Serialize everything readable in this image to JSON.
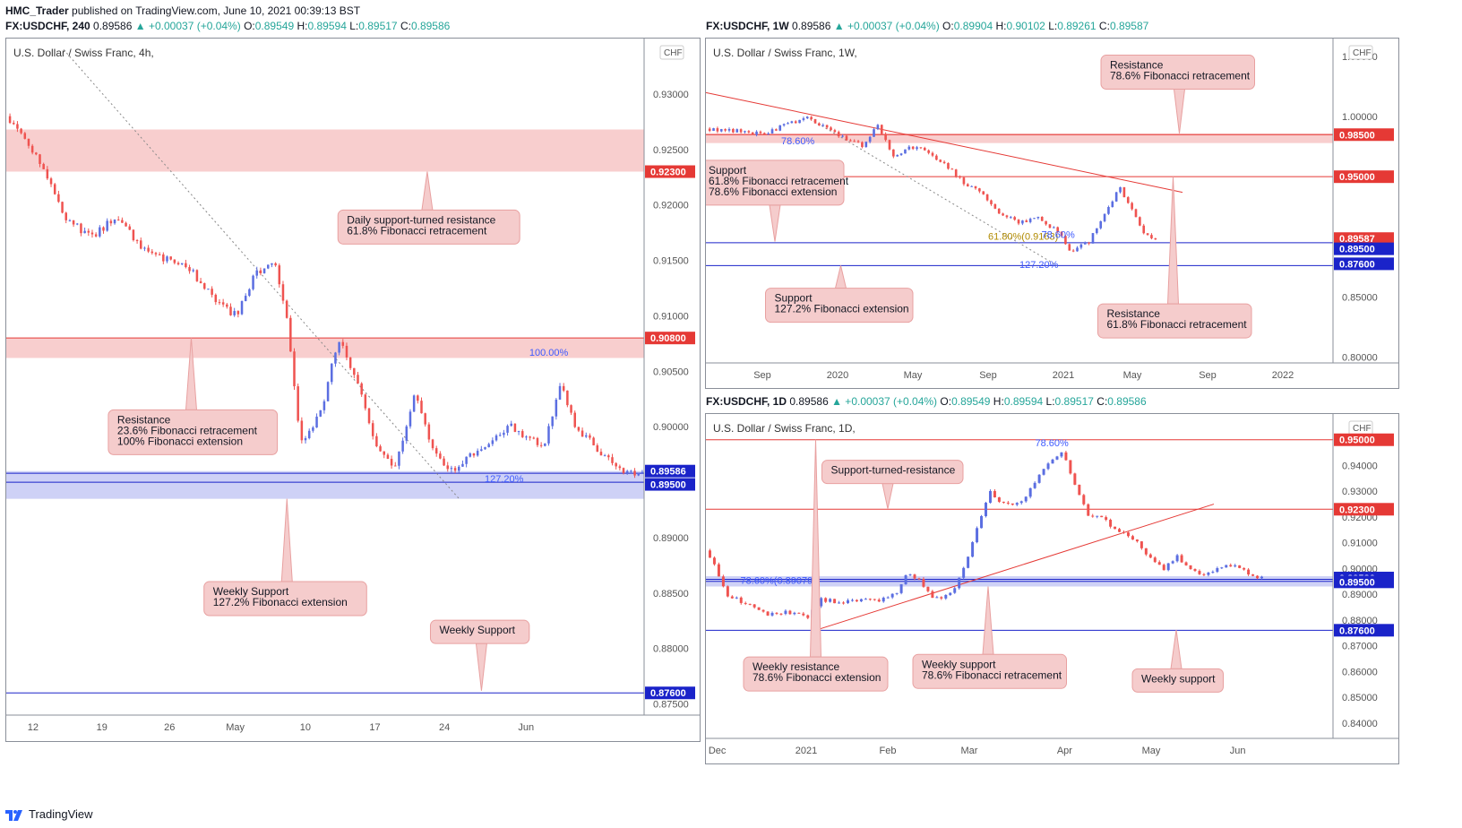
{
  "header": {
    "publisher": "HMC_Trader",
    "published_text": "published on TradingView.com, June 10, 2021 00:39:13 BST"
  },
  "footer": {
    "brand": "TradingView"
  },
  "colors": {
    "bull": "#5b6ee1",
    "bear": "#ef5350",
    "zone_red": "#f7c6c6",
    "zone_blue": "#c5c9f5",
    "line_red": "#e53935",
    "line_blue": "#1a23c9",
    "label_bg": "#f5cccc",
    "label_border": "#e8a0a0"
  },
  "chart_data": [
    {
      "id": "left",
      "type": "candlestick",
      "symbol_line": {
        "symbol": "FX:USDCHF, 240",
        "last": "0.89586",
        "change": "▲ +0.00037 (+0.04%)",
        "o": "0.89549",
        "h": "0.89594",
        "l": "0.89517",
        "c": "0.89586"
      },
      "title": "U.S. Dollar / Swiss Franc, 4h,",
      "currency": "CHF",
      "ylim": [
        0.874,
        0.935
      ],
      "yticks": [
        0.875,
        0.88,
        0.885,
        0.89,
        0.895,
        0.9,
        0.905,
        0.91,
        0.915,
        0.92,
        0.925,
        0.93
      ],
      "ytick_labels": [
        "0.87500",
        "0.88000",
        "0.88500",
        "0.89000",
        "0.89500",
        "0.90000",
        "0.90500",
        "0.91000",
        "0.91500",
        "0.92000",
        "0.92500",
        "0.93000"
      ],
      "xticks": [
        "12",
        "19",
        "26",
        "May",
        "10",
        "17",
        "24",
        "Jun"
      ],
      "xtick_pos": [
        0.042,
        0.15,
        0.256,
        0.359,
        0.469,
        0.578,
        0.687,
        0.815
      ],
      "path": [
        [
          0,
          0.928
        ],
        [
          0.05,
          0.924
        ],
        [
          0.09,
          0.919
        ],
        [
          0.13,
          0.917
        ],
        [
          0.17,
          0.919
        ],
        [
          0.21,
          0.916
        ],
        [
          0.25,
          0.915
        ],
        [
          0.29,
          0.914
        ],
        [
          0.33,
          0.911
        ],
        [
          0.36,
          0.91
        ],
        [
          0.39,
          0.914
        ],
        [
          0.42,
          0.9145
        ],
        [
          0.44,
          0.909
        ],
        [
          0.46,
          0.8985
        ],
        [
          0.49,
          0.901
        ],
        [
          0.52,
          0.908
        ],
        [
          0.55,
          0.904
        ],
        [
          0.58,
          0.898
        ],
        [
          0.61,
          0.8965
        ],
        [
          0.64,
          0.9035
        ],
        [
          0.67,
          0.8975
        ],
        [
          0.7,
          0.896
        ],
        [
          0.73,
          0.8975
        ],
        [
          0.76,
          0.8985
        ],
        [
          0.79,
          0.9
        ],
        [
          0.82,
          0.899
        ],
        [
          0.84,
          0.898
        ],
        [
          0.87,
          0.904
        ],
        [
          0.89,
          0.9
        ],
        [
          0.92,
          0.8985
        ],
        [
          0.95,
          0.8965
        ],
        [
          0.97,
          0.896
        ],
        [
          1.0,
          0.8959
        ]
      ],
      "zones": [
        {
          "y1": 0.923,
          "y2": 0.9268,
          "color": "red"
        },
        {
          "y1": 0.9062,
          "y2": 0.908,
          "color": "red"
        },
        {
          "y1": 0.8935,
          "y2": 0.896,
          "color": "blue"
        }
      ],
      "hlines": [
        {
          "y": 0.908,
          "color": "red"
        },
        {
          "y": 0.895,
          "color": "blue"
        },
        {
          "y": 0.8958,
          "color": "blue"
        },
        {
          "y": 0.876,
          "color": "blue"
        }
      ],
      "price_tags": [
        {
          "y": 0.923,
          "text": "0.92300",
          "color": "red"
        },
        {
          "y": 0.908,
          "text": "0.90800",
          "color": "red"
        },
        {
          "y": 0.896,
          "text": "0.89586",
          "color": "blue"
        },
        {
          "y": 0.8948,
          "text": "0.89500",
          "color": "blue"
        },
        {
          "y": 0.876,
          "text": "0.87600",
          "color": "blue"
        }
      ],
      "fib_labels": [
        {
          "text": "100.00%",
          "x": 0.82,
          "y": 0.9064
        },
        {
          "text": "127.20%",
          "x": 0.75,
          "y": 0.895
        }
      ],
      "diag_lines": [
        {
          "x1": 0.09,
          "y1": 0.934,
          "x2": 0.71,
          "y2": 0.8935,
          "style": "dotted"
        }
      ],
      "callouts": [
        {
          "lines": [
            "Daily support-turned resistance",
            "61.8% Fibonacci retracement"
          ],
          "x": 0.52,
          "y": 0.918,
          "w": 0.285,
          "ptr_x": 0.66,
          "ptr_y": 0.923,
          "dir": "up"
        },
        {
          "lines": [
            "Resistance",
            "23.6% Fibonacci retracement",
            "100% Fibonacci extension"
          ],
          "x": 0.16,
          "y": 0.8995,
          "w": 0.265,
          "ptr_x": 0.29,
          "ptr_y": 0.908,
          "dir": "up"
        },
        {
          "lines": [
            "Weekly Support",
            "127.2% Fibonacci extension"
          ],
          "x": 0.31,
          "y": 0.8845,
          "w": 0.255,
          "ptr_x": 0.44,
          "ptr_y": 0.8935,
          "dir": "up"
        },
        {
          "lines": [
            "Weekly Support"
          ],
          "x": 0.665,
          "y": 0.8815,
          "w": 0.155,
          "ptr_x": 0.745,
          "ptr_y": 0.8762,
          "dir": "down"
        }
      ]
    },
    {
      "id": "top-right",
      "type": "candlestick",
      "symbol_line": {
        "symbol": "FX:USDCHF, 1W",
        "last": "0.89586",
        "change": "▲ +0.00037 (+0.04%)",
        "o": "0.89904",
        "h": "0.90102",
        "l": "0.89261",
        "c": "0.89587"
      },
      "title": "U.S. Dollar / Swiss Franc, 1W,",
      "currency": "CHF",
      "ylim": [
        0.795,
        1.065
      ],
      "yticks": [
        0.8,
        0.85,
        0.9,
        0.95,
        1.0,
        1.05
      ],
      "ytick_labels": [
        "0.80000",
        "0.85000",
        "0.90000",
        "0.95000",
        "1.00000",
        "1.05000"
      ],
      "xticks": [
        "Sep",
        "2020",
        "May",
        "Sep",
        "2021",
        "May",
        "Sep",
        "2022"
      ],
      "xtick_pos": [
        0.09,
        0.21,
        0.33,
        0.45,
        0.57,
        0.68,
        0.8,
        0.92
      ],
      "path_range": [
        0,
        0.72
      ],
      "path": [
        [
          0,
          0.99
        ],
        [
          0.05,
          0.988
        ],
        [
          0.09,
          0.985
        ],
        [
          0.12,
          0.992
        ],
        [
          0.16,
          1.0
        ],
        [
          0.19,
          0.99
        ],
        [
          0.22,
          0.982
        ],
        [
          0.25,
          0.975
        ],
        [
          0.27,
          0.995
        ],
        [
          0.3,
          0.965
        ],
        [
          0.32,
          0.975
        ],
        [
          0.35,
          0.972
        ],
        [
          0.38,
          0.96
        ],
        [
          0.41,
          0.945
        ],
        [
          0.44,
          0.935
        ],
        [
          0.47,
          0.918
        ],
        [
          0.5,
          0.912
        ],
        [
          0.53,
          0.915
        ],
        [
          0.56,
          0.905
        ],
        [
          0.58,
          0.888
        ],
        [
          0.61,
          0.895
        ],
        [
          0.64,
          0.925
        ],
        [
          0.66,
          0.94
        ],
        [
          0.68,
          0.923
        ],
        [
          0.7,
          0.902
        ],
        [
          0.72,
          0.8958
        ]
      ],
      "zones": [
        {
          "y1": 0.978,
          "y2": 0.986,
          "color": "red"
        }
      ],
      "hlines": [
        {
          "y": 0.985,
          "color": "red"
        },
        {
          "y": 0.95,
          "color": "red"
        },
        {
          "y": 0.895,
          "color": "blue"
        },
        {
          "y": 0.876,
          "color": "blue"
        }
      ],
      "price_tags": [
        {
          "y": 0.985,
          "text": "0.98500",
          "color": "red"
        },
        {
          "y": 0.95,
          "text": "0.95000",
          "color": "red"
        },
        {
          "y": 0.8985,
          "text": "0.89587",
          "color": "red"
        },
        {
          "y": 0.89,
          "text": "0.89500",
          "color": "blue"
        },
        {
          "y": 0.8775,
          "text": "0.87600",
          "color": "blue"
        }
      ],
      "fib_labels": [
        {
          "text": "78.60%",
          "x": 0.12,
          "y": 0.977
        },
        {
          "text": "61.80%",
          "x": 0.12,
          "y": 0.9525,
          "color": "#b08a00"
        },
        {
          "text": "61.80%(0.9163)",
          "x": 0.45,
          "y": 0.8975,
          "color": "#b08a00"
        },
        {
          "text": "78.60%",
          "x": 0.535,
          "y": 0.899
        },
        {
          "text": "127.20%",
          "x": 0.5,
          "y": 0.8742
        }
      ],
      "diag_lines": [
        {
          "x1": 0.0,
          "y1": 1.02,
          "x2": 0.76,
          "y2": 0.937,
          "style": "solid"
        },
        {
          "x1": 0.16,
          "y1": 1.0,
          "x2": 0.56,
          "y2": 0.876,
          "style": "dotted"
        }
      ],
      "callouts": [
        {
          "lines": [
            "Resistance",
            "78.6% Fibonacci retracement"
          ],
          "x": 0.63,
          "y": 1.037,
          "w": 0.245,
          "ptr_x": 0.755,
          "ptr_y": 0.986,
          "dir": "down"
        },
        {
          "lines": [
            "Support",
            "61.8% Fibonacci retracement",
            "78.6% Fibonacci extension"
          ],
          "x": -0.01,
          "y": 0.945,
          "w": 0.23,
          "ptr_x": 0.11,
          "ptr_y": 0.896,
          "dir": "down"
        },
        {
          "lines": [
            "Support",
            "127.2% Fibonacci extension"
          ],
          "x": 0.095,
          "y": 0.843,
          "w": 0.235,
          "ptr_x": 0.215,
          "ptr_y": 0.876,
          "dir": "up"
        },
        {
          "lines": [
            "Resistance",
            "61.8% Fibonacci retracement"
          ],
          "x": 0.625,
          "y": 0.83,
          "w": 0.245,
          "ptr_x": 0.745,
          "ptr_y": 0.95,
          "dir": "up"
        }
      ]
    },
    {
      "id": "bottom-right",
      "type": "candlestick",
      "symbol_line": {
        "symbol": "FX:USDCHF, 1D",
        "last": "0.89586",
        "change": "▲ +0.00037 (+0.04%)",
        "o": "0.89549",
        "h": "0.89594",
        "l": "0.89517",
        "c": "0.89586"
      },
      "title": "U.S. Dollar / Swiss Franc, 1D,",
      "currency": "CHF",
      "ylim": [
        0.834,
        0.96
      ],
      "yticks": [
        0.84,
        0.85,
        0.86,
        0.87,
        0.88,
        0.89,
        0.9,
        0.91,
        0.92,
        0.93,
        0.94,
        0.95
      ],
      "ytick_labels": [
        "0.84000",
        "0.85000",
        "0.86000",
        "0.87000",
        "0.88000",
        "0.89000",
        "0.90000",
        "0.91000",
        "0.92000",
        "0.93000",
        "0.94000",
        "0.95000"
      ],
      "xticks": [
        "Dec",
        "2021",
        "Feb",
        "Mar",
        "Apr",
        "May",
        "Jun"
      ],
      "xtick_pos": [
        0.018,
        0.16,
        0.29,
        0.42,
        0.572,
        0.71,
        0.848
      ],
      "path_range": [
        0,
        0.89
      ],
      "path": [
        [
          0,
          0.907
        ],
        [
          0.03,
          0.89
        ],
        [
          0.07,
          0.885
        ],
        [
          0.1,
          0.882
        ],
        [
          0.13,
          0.883
        ],
        [
          0.16,
          0.881
        ],
        [
          0.18,
          0.888
        ],
        [
          0.21,
          0.887
        ],
        [
          0.24,
          0.888
        ],
        [
          0.27,
          0.887
        ],
        [
          0.3,
          0.89
        ],
        [
          0.32,
          0.898
        ],
        [
          0.34,
          0.895
        ],
        [
          0.36,
          0.888
        ],
        [
          0.39,
          0.89
        ],
        [
          0.41,
          0.9
        ],
        [
          0.43,
          0.915
        ],
        [
          0.45,
          0.93
        ],
        [
          0.47,
          0.925
        ],
        [
          0.5,
          0.925
        ],
        [
          0.52,
          0.933
        ],
        [
          0.55,
          0.942
        ],
        [
          0.57,
          0.945
        ],
        [
          0.59,
          0.93
        ],
        [
          0.61,
          0.92
        ],
        [
          0.63,
          0.92
        ],
        [
          0.65,
          0.915
        ],
        [
          0.67,
          0.913
        ],
        [
          0.69,
          0.91
        ],
        [
          0.71,
          0.903
        ],
        [
          0.73,
          0.9
        ],
        [
          0.75,
          0.905
        ],
        [
          0.77,
          0.9
        ],
        [
          0.79,
          0.898
        ],
        [
          0.81,
          0.899
        ],
        [
          0.83,
          0.902
        ],
        [
          0.85,
          0.9
        ],
        [
          0.87,
          0.8975
        ],
        [
          0.89,
          0.8958
        ]
      ],
      "zones": [
        {
          "y1": 0.893,
          "y2": 0.897,
          "color": "blue"
        }
      ],
      "hlines": [
        {
          "y": 0.95,
          "color": "red"
        },
        {
          "y": 0.923,
          "color": "red"
        },
        {
          "y": 0.8958,
          "color": "blue"
        },
        {
          "y": 0.895,
          "color": "blue"
        },
        {
          "y": 0.876,
          "color": "blue"
        }
      ],
      "price_tags": [
        {
          "y": 0.95,
          "text": "0.95000",
          "color": "red"
        },
        {
          "y": 0.923,
          "text": "0.92300",
          "color": "red"
        },
        {
          "y": 0.8963,
          "text": "0.89586",
          "color": "blue"
        },
        {
          "y": 0.8948,
          "text": "0.89500",
          "color": "blue"
        },
        {
          "y": 0.876,
          "text": "0.87600",
          "color": "blue"
        }
      ],
      "fib_labels": [
        {
          "text": "78.60%",
          "x": 0.525,
          "y": 0.9475
        },
        {
          "text": "78.60%(0.89079)",
          "x": 0.055,
          "y": 0.894
        }
      ],
      "diag_lines": [
        {
          "x1": 0.175,
          "y1": 0.876,
          "x2": 0.81,
          "y2": 0.925,
          "style": "solid"
        }
      ],
      "callouts": [
        {
          "lines": [
            "Support-turned-resistance"
          ],
          "x": 0.185,
          "y": 0.9375,
          "w": 0.225,
          "ptr_x": 0.29,
          "ptr_y": 0.9232,
          "dir": "down"
        },
        {
          "lines": [
            "Weekly resistance",
            "78.6% Fibonacci extension"
          ],
          "x": 0.06,
          "y": 0.859,
          "w": 0.23,
          "ptr_x": 0.175,
          "ptr_y": 0.95,
          "dir": "up"
        },
        {
          "lines": [
            "Weekly support",
            "78.6% Fibonacci retracement"
          ],
          "x": 0.33,
          "y": 0.86,
          "w": 0.245,
          "ptr_x": 0.45,
          "ptr_y": 0.893,
          "dir": "up"
        },
        {
          "lines": [
            "Weekly support"
          ],
          "x": 0.68,
          "y": 0.8565,
          "w": 0.145,
          "ptr_x": 0.75,
          "ptr_y": 0.8762,
          "dir": "up"
        }
      ]
    }
  ]
}
